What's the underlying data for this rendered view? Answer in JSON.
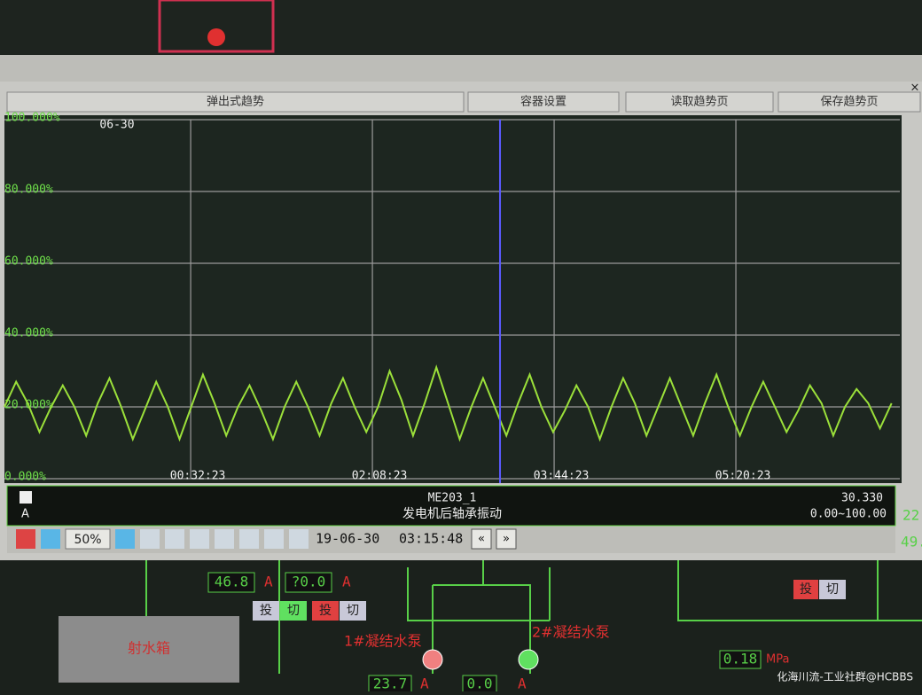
{
  "window": {
    "buttons": [
      "弹出式趋势",
      "容器设置",
      "读取趋势页",
      "保存趋势页"
    ]
  },
  "chart_data": {
    "type": "line",
    "date_marker": "06-30",
    "x": [
      -3960,
      -3590,
      -3220,
      -2850,
      -2480,
      -2110,
      -1740,
      -1370,
      -1000,
      -630,
      -260,
      110,
      480,
      850,
      1220,
      1590,
      1960,
      2330,
      2700,
      3070,
      3440,
      3810,
      4180,
      4550,
      4920,
      5290,
      5660,
      6030,
      6400,
      6770,
      7140,
      7510,
      7880,
      8250,
      8620,
      8990,
      9360,
      9730,
      10100,
      10470,
      10840,
      11210,
      11580,
      11950,
      12320,
      12690,
      13060,
      13430,
      13800,
      14170,
      14540,
      14910,
      15280,
      15650,
      16020,
      16390,
      16760,
      17130,
      17500,
      17870,
      18240,
      18610,
      18980,
      19350,
      19720,
      20090,
      20460,
      20830,
      21200,
      21570,
      21940,
      22310,
      22680,
      23050,
      23420,
      23790,
      24160
    ],
    "series": [
      {
        "name": "ME203_1",
        "description": "发电机后轴承振动",
        "readout": "30.330",
        "range": "0.00~100.00",
        "unit": "A",
        "color": "#9be03a",
        "values": [
          20,
          27,
          21,
          13,
          20,
          26,
          20,
          12,
          21,
          28,
          20,
          11,
          19,
          27,
          20,
          11,
          20,
          29,
          21,
          12,
          20,
          26,
          19,
          11,
          20,
          27,
          20,
          12,
          21,
          28,
          20,
          13,
          20,
          30,
          22,
          12,
          21,
          31,
          21,
          11,
          20,
          28,
          20,
          12,
          21,
          29,
          20,
          13,
          19,
          26,
          20,
          11,
          20,
          28,
          21,
          12,
          20,
          28,
          20,
          12,
          21,
          29,
          20,
          12,
          20,
          27,
          20,
          13,
          19,
          26,
          21,
          12,
          20,
          25,
          21,
          14,
          21
        ]
      }
    ],
    "xlim": [
      -3960,
      24420
    ],
    "xticks": [
      {
        "value": 1943,
        "label": "00:32:23"
      },
      {
        "value": 7703,
        "label": "02:08:23"
      },
      {
        "value": 13463,
        "label": "03:44:23"
      },
      {
        "value": 19223,
        "label": "05:20:23"
      }
    ],
    "ylim": [
      0,
      100
    ],
    "yticks": [
      {
        "value": 0,
        "label": "0.000%"
      },
      {
        "value": 20,
        "label": "20.000%"
      },
      {
        "value": 40,
        "label": "40.000%"
      },
      {
        "value": 60,
        "label": "60.000%"
      },
      {
        "value": 80,
        "label": "80.000%"
      },
      {
        "value": 100,
        "label": "100.000%"
      }
    ],
    "grid": true,
    "cursor": {
      "x": 11748,
      "date": "19-06-30",
      "time": "03:15:48"
    }
  },
  "toolbar": {
    "zoom": "50%"
  },
  "hmi": {
    "value_a": "46.8",
    "unit_a": "A",
    "value_b": "?0.0",
    "unit_b": "A",
    "on": "投",
    "off": "切",
    "on2": "投",
    "off2": "切",
    "on3": "投",
    "off3": "切",
    "tank": "射水箱",
    "pump1": "1#凝结水泵",
    "pump2": "2#凝结水泵",
    "value_c": "23.7",
    "unit_c": "A",
    "value_d": "0.0",
    "unit_d": "A",
    "pressure": "0.18",
    "pressure_unit": "MPa",
    "side1": "22",
    "side2": "49.",
    "watermark": "化海川流-工业社群@HCBBS"
  }
}
